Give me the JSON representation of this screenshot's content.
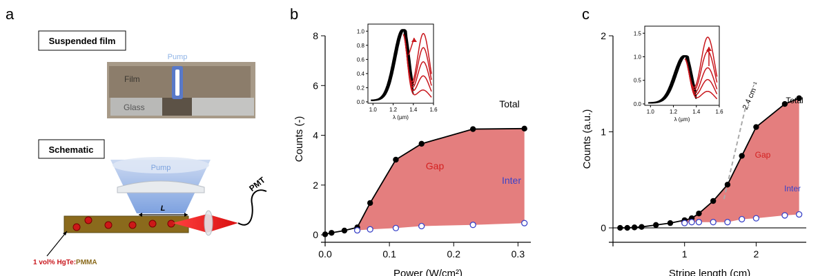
{
  "panels": {
    "a": "a",
    "b": "b",
    "c": "c"
  },
  "schematic": {
    "suspended_title": "Suspended film",
    "photo_pump": "Pump",
    "photo_film": "Film",
    "photo_glass": "Glass",
    "schematic_title": "Schematic",
    "pump_label": "Pump",
    "length_label": "L",
    "pmt_label": "PMT",
    "material_prefix": "1 vol% HgTe:",
    "material_suffix": "PMMA"
  },
  "colors": {
    "gap_fill": "#e47e7e",
    "gap_text": "#d42020",
    "inter": "#3a43c8",
    "red_curves": "#c8161c"
  },
  "chart_data": [
    {
      "type": "area",
      "xlabel": "Power (W/cm²)",
      "ylabel": "Counts (-)",
      "xlim": [
        0,
        0.32
      ],
      "ylim": [
        -0.3,
        8
      ],
      "xticks": [
        "0.0",
        "0.1",
        "0.2",
        "0.3"
      ],
      "xtick_values": [
        0,
        0.1,
        0.2,
        0.3
      ],
      "yticks": [
        "0",
        "2",
        "4",
        "6",
        "8"
      ],
      "ytick_values": [
        0,
        2,
        4,
        6,
        8
      ],
      "series": [
        {
          "name": "Total",
          "x": [
            0,
            0.01,
            0.03,
            0.05,
            0.07,
            0.11,
            0.15,
            0.23,
            0.31
          ],
          "y": [
            0.02,
            0.08,
            0.17,
            0.3,
            1.28,
            3.02,
            3.66,
            4.25,
            4.27
          ]
        },
        {
          "name": "Inter",
          "x": [
            0.05,
            0.07,
            0.11,
            0.15,
            0.23,
            0.31
          ],
          "y": [
            0.18,
            0.22,
            0.27,
            0.35,
            0.4,
            0.47
          ]
        }
      ],
      "region_label": "Gap",
      "inset": {
        "xlabel": "λ (µm)",
        "xlim": [
          0.95,
          1.6
        ],
        "ylim": [
          -0.02,
          1.1
        ],
        "xticks": [
          "1.0",
          "1.2",
          "1.4",
          "1.6"
        ],
        "xtick_values": [
          1.0,
          1.2,
          1.4,
          1.6
        ],
        "yticks": [
          "0.0",
          "0.2",
          "0.4",
          "0.6",
          "0.8",
          "1.0"
        ],
        "ytick_values": [
          0,
          0.2,
          0.4,
          0.6,
          0.8,
          1.0
        ]
      }
    },
    {
      "type": "area",
      "xlabel": "Stripe length (cm)",
      "ylabel": "Counts (a.u.)",
      "xlim": [
        0,
        2.7
      ],
      "ylim": [
        -0.15,
        2
      ],
      "xticks": [
        "1",
        "2"
      ],
      "xtick_values": [
        1,
        2
      ],
      "yticks": [
        "0",
        "1",
        "2"
      ],
      "ytick_values": [
        0,
        1,
        2
      ],
      "series": [
        {
          "name": "Total",
          "x": [
            0.1,
            0.2,
            0.3,
            0.4,
            0.6,
            0.8,
            1.0,
            1.1,
            1.2,
            1.4,
            1.6,
            1.8,
            2.0,
            2.4,
            2.6
          ],
          "y": [
            0,
            0,
            0.005,
            0.01,
            0.03,
            0.05,
            0.08,
            0.1,
            0.15,
            0.28,
            0.45,
            0.75,
            1.05,
            1.29,
            1.35
          ]
        },
        {
          "name": "Inter",
          "x": [
            1.0,
            1.1,
            1.2,
            1.4,
            1.6,
            1.8,
            2.0,
            2.4,
            2.6
          ],
          "y": [
            0.05,
            0.06,
            0.06,
            0.06,
            0.06,
            0.09,
            0.1,
            0.13,
            0.14
          ]
        }
      ],
      "region_label": "Gap",
      "annotation": "2.4 cm⁻¹",
      "inset": {
        "xlabel": "λ (µm)",
        "xlim": [
          0.95,
          1.6
        ],
        "ylim": [
          -0.03,
          1.65
        ],
        "xticks": [
          "1.0",
          "1.2",
          "1.4",
          "1.6"
        ],
        "xtick_values": [
          1.0,
          1.2,
          1.4,
          1.6
        ],
        "yticks": [
          "0.0",
          "0.5",
          "1.0",
          "1.5"
        ],
        "ytick_values": [
          0,
          0.5,
          1.0,
          1.5
        ]
      }
    }
  ]
}
